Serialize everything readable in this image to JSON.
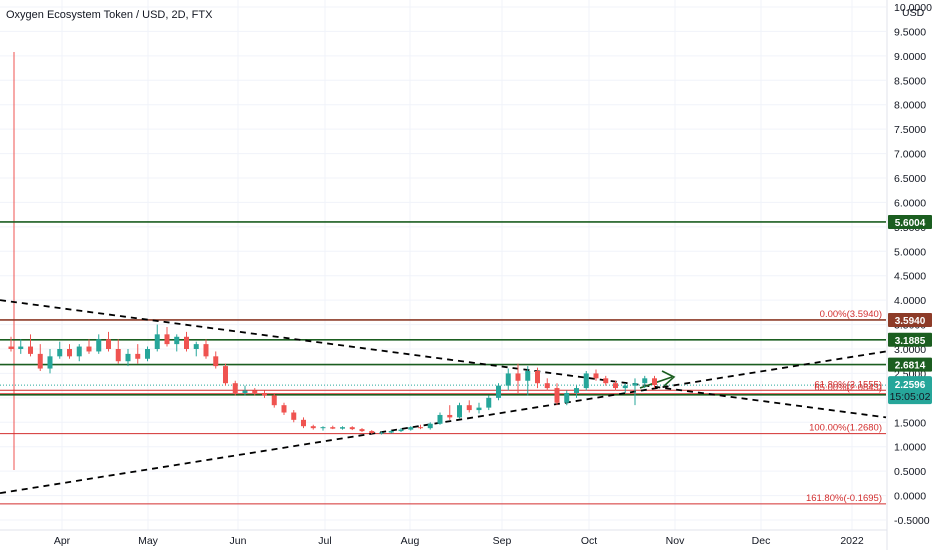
{
  "header": {
    "title": "Oxygen Ecosystem Token / USD, 2D, FTX"
  },
  "colors": {
    "up": "#26a69a",
    "down": "#ef5350",
    "hline_green": "#1b5e20",
    "hline_brown": "#8d3b28",
    "fib_red": "#d32f2f",
    "price_tag": "#26a69a",
    "grid": "#f0f3fa"
  },
  "chart_data": {
    "type": "candlestick",
    "symbol": "Oxygen Ecosystem Token / USD",
    "interval": "2D",
    "exchange": "FTX",
    "currency": "USD",
    "y_axis_ticks": [
      "10.0000",
      "9.5000",
      "9.0000",
      "8.5000",
      "8.0000",
      "7.5000",
      "7.0000",
      "6.5000",
      "6.0000",
      "5.5000",
      "5.0000",
      "4.5000",
      "4.0000",
      "3.5000",
      "3.0000",
      "2.5000",
      "2.0000",
      "1.5000",
      "1.0000",
      "0.5000",
      "0.0000",
      "-0.5000"
    ],
    "x_axis_ticks": [
      "Apr",
      "May",
      "Jun",
      "Jul",
      "Aug",
      "Sep",
      "Oct",
      "Nov",
      "Dec",
      "2022"
    ],
    "ylim": [
      -0.5,
      10.0
    ],
    "horizontal_levels": [
      {
        "value": 5.6004,
        "label": "5.6004",
        "style": "green"
      },
      {
        "value": 3.594,
        "label": "3.5940",
        "style": "brown"
      },
      {
        "value": 3.1885,
        "label": "3.1885",
        "style": "green"
      },
      {
        "value": 2.6814,
        "label": "2.6814",
        "style": "green"
      },
      {
        "value": 2.0613,
        "label": "2.0613",
        "style": "green"
      }
    ],
    "fib_levels": [
      {
        "value": 3.594,
        "label": "0.00%(3.5940)"
      },
      {
        "value": 2.1555,
        "label": "61.80%(2.1555)"
      },
      {
        "value": 2.0843,
        "label": "65.00%(2.0843)"
      },
      {
        "value": 1.268,
        "label": "100.00%(1.2680)"
      },
      {
        "value": -0.1695,
        "label": "161.80%(-0.1695)"
      }
    ],
    "last_price": {
      "value": 2.2596,
      "label": "2.2596",
      "countdown": "15:05:02"
    },
    "trendlines": [
      {
        "name": "",
        "from": [
          0,
          4.0
        ],
        "to": [
          1.0,
          1.6
        ],
        "style": "dashed"
      },
      {
        "name": "",
        "from": [
          0,
          0.05
        ],
        "to": [
          1.0,
          2.95
        ],
        "style": "dashed"
      }
    ],
    "candles": [
      {
        "o": 3.05,
        "h": 3.25,
        "l": 2.95,
        "c": 3.0
      },
      {
        "o": 3.0,
        "h": 3.2,
        "l": 2.9,
        "c": 3.05
      },
      {
        "o": 3.05,
        "h": 3.3,
        "l": 2.85,
        "c": 2.9
      },
      {
        "o": 2.9,
        "h": 3.1,
        "l": 2.55,
        "c": 2.6
      },
      {
        "o": 2.6,
        "h": 3.0,
        "l": 2.5,
        "c": 2.85
      },
      {
        "o": 2.85,
        "h": 3.15,
        "l": 2.8,
        "c": 3.0
      },
      {
        "o": 3.0,
        "h": 3.1,
        "l": 2.8,
        "c": 2.85
      },
      {
        "o": 2.85,
        "h": 3.1,
        "l": 2.75,
        "c": 3.05
      },
      {
        "o": 3.05,
        "h": 3.2,
        "l": 2.9,
        "c": 2.95
      },
      {
        "o": 2.95,
        "h": 3.3,
        "l": 2.9,
        "c": 3.2
      },
      {
        "o": 3.2,
        "h": 3.35,
        "l": 2.95,
        "c": 3.0
      },
      {
        "o": 3.0,
        "h": 3.2,
        "l": 2.7,
        "c": 2.75
      },
      {
        "o": 2.75,
        "h": 3.0,
        "l": 2.65,
        "c": 2.9
      },
      {
        "o": 2.9,
        "h": 3.1,
        "l": 2.7,
        "c": 2.8
      },
      {
        "o": 2.8,
        "h": 3.05,
        "l": 2.75,
        "c": 3.0
      },
      {
        "o": 3.0,
        "h": 3.5,
        "l": 2.95,
        "c": 3.3
      },
      {
        "o": 3.3,
        "h": 3.45,
        "l": 3.05,
        "c": 3.1
      },
      {
        "o": 3.1,
        "h": 3.3,
        "l": 2.95,
        "c": 3.25
      },
      {
        "o": 3.25,
        "h": 3.35,
        "l": 2.95,
        "c": 3.0
      },
      {
        "o": 3.0,
        "h": 3.15,
        "l": 2.85,
        "c": 3.1
      },
      {
        "o": 3.1,
        "h": 3.2,
        "l": 2.8,
        "c": 2.85
      },
      {
        "o": 2.85,
        "h": 2.95,
        "l": 2.6,
        "c": 2.65
      },
      {
        "o": 2.65,
        "h": 2.7,
        "l": 2.25,
        "c": 2.3
      },
      {
        "o": 2.3,
        "h": 2.35,
        "l": 2.05,
        "c": 2.1
      },
      {
        "o": 2.1,
        "h": 2.25,
        "l": 2.05,
        "c": 2.15
      },
      {
        "o": 2.15,
        "h": 2.2,
        "l": 2.05,
        "c": 2.1
      },
      {
        "o": 2.1,
        "h": 2.15,
        "l": 2.0,
        "c": 2.05
      },
      {
        "o": 2.05,
        "h": 2.1,
        "l": 1.8,
        "c": 1.85
      },
      {
        "o": 1.85,
        "h": 1.9,
        "l": 1.65,
        "c": 1.7
      },
      {
        "o": 1.7,
        "h": 1.75,
        "l": 1.5,
        "c": 1.55
      },
      {
        "o": 1.55,
        "h": 1.6,
        "l": 1.38,
        "c": 1.42
      },
      {
        "o": 1.42,
        "h": 1.45,
        "l": 1.35,
        "c": 1.38
      },
      {
        "o": 1.38,
        "h": 1.42,
        "l": 1.33,
        "c": 1.4
      },
      {
        "o": 1.4,
        "h": 1.43,
        "l": 1.36,
        "c": 1.37
      },
      {
        "o": 1.37,
        "h": 1.42,
        "l": 1.35,
        "c": 1.4
      },
      {
        "o": 1.4,
        "h": 1.42,
        "l": 1.34,
        "c": 1.36
      },
      {
        "o": 1.36,
        "h": 1.38,
        "l": 1.3,
        "c": 1.32
      },
      {
        "o": 1.32,
        "h": 1.34,
        "l": 1.26,
        "c": 1.28
      },
      {
        "o": 1.28,
        "h": 1.31,
        "l": 1.25,
        "c": 1.29
      },
      {
        "o": 1.29,
        "h": 1.34,
        "l": 1.27,
        "c": 1.32
      },
      {
        "o": 1.32,
        "h": 1.38,
        "l": 1.3,
        "c": 1.35
      },
      {
        "o": 1.35,
        "h": 1.42,
        "l": 1.33,
        "c": 1.4
      },
      {
        "o": 1.4,
        "h": 1.45,
        "l": 1.36,
        "c": 1.38
      },
      {
        "o": 1.38,
        "h": 1.5,
        "l": 1.35,
        "c": 1.47
      },
      {
        "o": 1.47,
        "h": 1.7,
        "l": 1.45,
        "c": 1.65
      },
      {
        "o": 1.65,
        "h": 1.85,
        "l": 1.55,
        "c": 1.6
      },
      {
        "o": 1.6,
        "h": 1.9,
        "l": 1.58,
        "c": 1.85
      },
      {
        "o": 1.85,
        "h": 1.95,
        "l": 1.7,
        "c": 1.75
      },
      {
        "o": 1.75,
        "h": 1.9,
        "l": 1.68,
        "c": 1.8
      },
      {
        "o": 1.8,
        "h": 2.05,
        "l": 1.75,
        "c": 2.0
      },
      {
        "o": 2.0,
        "h": 2.3,
        "l": 1.95,
        "c": 2.25
      },
      {
        "o": 2.25,
        "h": 2.6,
        "l": 2.15,
        "c": 2.5
      },
      {
        "o": 2.5,
        "h": 2.7,
        "l": 2.1,
        "c": 2.35
      },
      {
        "o": 2.35,
        "h": 2.65,
        "l": 2.05,
        "c": 2.55
      },
      {
        "o": 2.55,
        "h": 2.62,
        "l": 2.2,
        "c": 2.3
      },
      {
        "o": 2.3,
        "h": 2.4,
        "l": 2.15,
        "c": 2.2
      },
      {
        "o": 2.2,
        "h": 2.3,
        "l": 1.85,
        "c": 1.9
      },
      {
        "o": 1.9,
        "h": 2.15,
        "l": 1.85,
        "c": 2.1
      },
      {
        "o": 2.1,
        "h": 2.25,
        "l": 2.0,
        "c": 2.2
      },
      {
        "o": 2.2,
        "h": 2.55,
        "l": 2.15,
        "c": 2.5
      },
      {
        "o": 2.5,
        "h": 2.58,
        "l": 2.35,
        "c": 2.4
      },
      {
        "o": 2.4,
        "h": 2.45,
        "l": 2.25,
        "c": 2.3
      },
      {
        "o": 2.3,
        "h": 2.35,
        "l": 2.15,
        "c": 2.2
      },
      {
        "o": 2.2,
        "h": 2.3,
        "l": 2.1,
        "c": 2.25
      },
      {
        "o": 2.25,
        "h": 2.4,
        "l": 1.85,
        "c": 2.3
      },
      {
        "o": 2.3,
        "h": 2.45,
        "l": 2.2,
        "c": 2.4
      },
      {
        "o": 2.4,
        "h": 2.45,
        "l": 2.2,
        "c": 2.26
      }
    ]
  }
}
